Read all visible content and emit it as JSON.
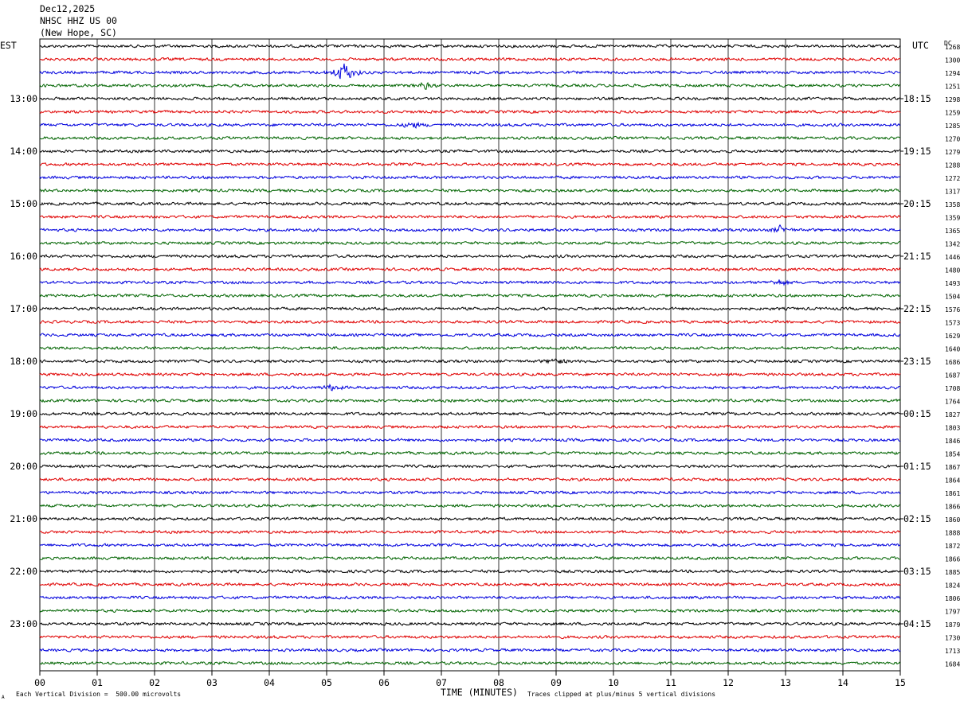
{
  "header": {
    "date": "Dec12,2025",
    "station": "NHSC HHZ US 00",
    "location": "(New Hope, SC)"
  },
  "left_axis_label": "EST",
  "right_axis_label": "UTC",
  "dc_label": "DC",
  "footer": {
    "scale_note": "Each Vertical Division =  500.00 microvolts",
    "clip_note": "Traces clipped at plus/minus 5 vertical divisions",
    "corner_mark": "A"
  },
  "chart_data": {
    "type": "line",
    "title": "",
    "xlabel": "TIME (MINUTES)",
    "xlim": [
      0,
      15
    ],
    "x_ticks": [
      "00",
      "01",
      "02",
      "03",
      "04",
      "05",
      "06",
      "07",
      "08",
      "09",
      "10",
      "11",
      "12",
      "13",
      "14",
      "15"
    ],
    "trace_interval_minutes": 15,
    "trace_count": 48,
    "trace_colors": [
      "#000000",
      "#e00000",
      "#0000dd",
      "#006400"
    ],
    "est_hour_labels": [
      "13:00",
      "14:00",
      "15:00",
      "16:00",
      "17:00",
      "18:00",
      "19:00",
      "20:00",
      "21:00",
      "22:00",
      "23:00"
    ],
    "utc_hour_labels": [
      "18:15",
      "19:15",
      "20:15",
      "21:15",
      "22:15",
      "23:15",
      "00:15",
      "01:15",
      "02:15",
      "03:15",
      "04:15"
    ],
    "dc_offsets": [
      "1268",
      "1300",
      "1294",
      "1251",
      "1298",
      "1259",
      "1285",
      "1270",
      "1279",
      "1288",
      "1272",
      "1317",
      "1358",
      "1359",
      "1365",
      "1342",
      "1446",
      "1480",
      "1493",
      "1504",
      "1576",
      "1573",
      "1629",
      "1640",
      "1686",
      "1687",
      "1708",
      "1764",
      "1827",
      "1803",
      "1846",
      "1854",
      "1867",
      "1864",
      "1861",
      "1866",
      "1860",
      "1888",
      "1872",
      "1866",
      "1885",
      "1824",
      "1806",
      "1797",
      "1879",
      "1730",
      "1713",
      "1684"
    ],
    "events": [
      {
        "trace": 2,
        "minute": 5.3,
        "description": "large burst"
      },
      {
        "trace": 3,
        "minute": 6.7,
        "description": "small burst"
      },
      {
        "trace": 6,
        "minute": 6.5,
        "description": "small burst"
      },
      {
        "trace": 24,
        "minute": 9.0,
        "description": "small burst"
      },
      {
        "trace": 26,
        "minute": 5.1,
        "description": "small burst"
      },
      {
        "trace": 14,
        "minute": 12.9,
        "description": "small burst"
      },
      {
        "trace": 18,
        "minute": 12.9,
        "description": "small burst"
      }
    ]
  }
}
